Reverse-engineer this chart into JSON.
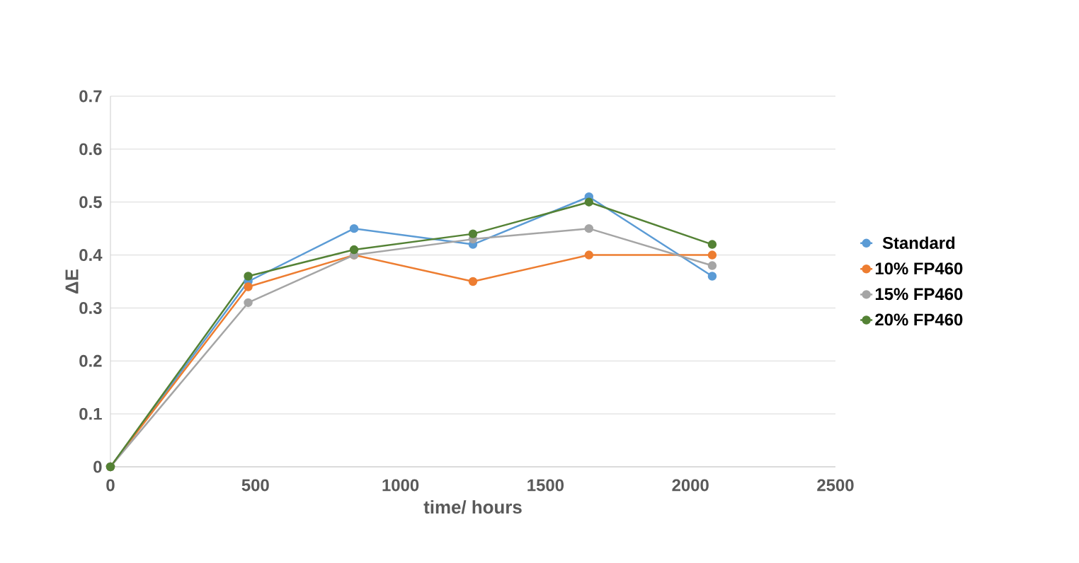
{
  "chart_data": {
    "type": "line",
    "xlabel": "time/ hours",
    "ylabel": "ΔE",
    "x": [
      0,
      475,
      840,
      1250,
      1650,
      2075
    ],
    "series": [
      {
        "name": "Standard",
        "color": "#5b9bd5",
        "values": [
          0,
          0.35,
          0.45,
          0.42,
          0.51,
          0.36
        ]
      },
      {
        "name": "10% FP460",
        "color": "#ed7d31",
        "values": [
          0,
          0.34,
          0.4,
          0.35,
          0.4,
          0.4
        ]
      },
      {
        "name": "15% FP460",
        "color": "#a5a5a5",
        "values": [
          0,
          0.31,
          0.4,
          0.43,
          0.45,
          0.38
        ]
      },
      {
        "name": "20% FP460",
        "color": "#548235",
        "values": [
          0,
          0.36,
          0.41,
          0.44,
          0.5,
          0.42
        ]
      }
    ],
    "xlim": [
      0,
      2500
    ],
    "xticks": [
      0,
      500,
      1000,
      1500,
      2000,
      2500
    ],
    "ylim": [
      0,
      0.7
    ],
    "yticks": [
      0,
      0.1,
      0.2,
      0.3,
      0.4,
      0.5,
      0.6,
      0.7
    ],
    "grid": "y",
    "legend": "right",
    "marker": "circle",
    "line_style": "solid"
  }
}
